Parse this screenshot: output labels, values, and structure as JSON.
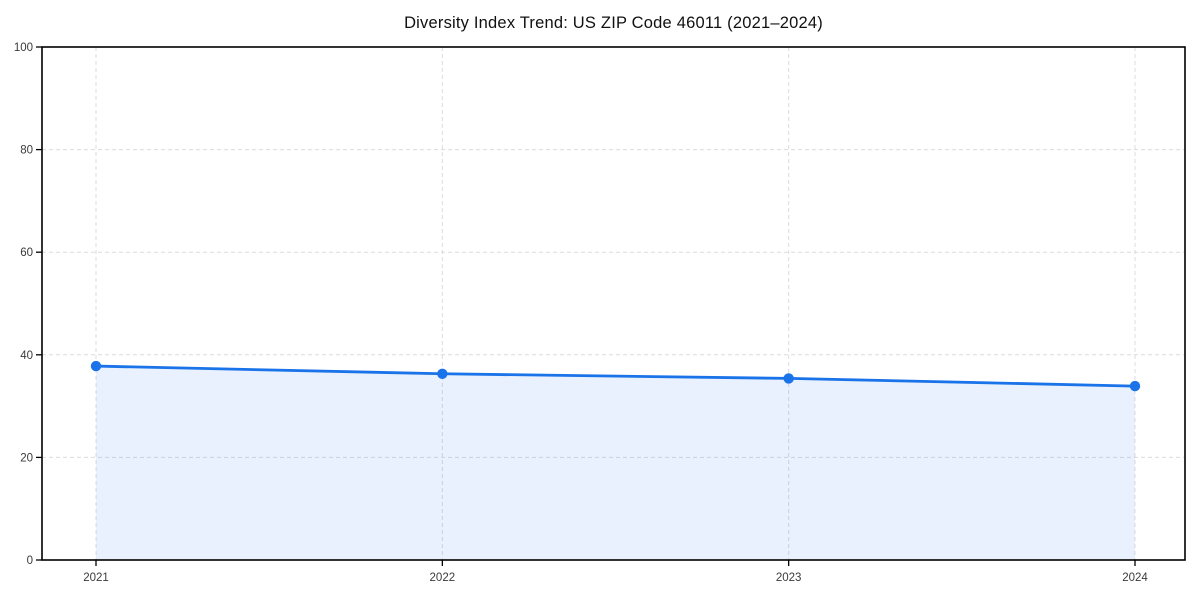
{
  "title": "Diversity Index Trend: US ZIP Code 46011 (2021–2024)",
  "colors": {
    "line": "#1a73e8",
    "marker": "#1a73e8",
    "area_fill": "rgba(26,115,232,0.10)",
    "grid": "#dcdcdc",
    "spine": "#000000",
    "tick_text": "#3a3a3a",
    "title_text": "#111111",
    "background": "#ffffff"
  },
  "chart_data": {
    "type": "line",
    "title": "Diversity Index Trend: US ZIP Code 46011 (2021–2024)",
    "x": [
      2021,
      2022,
      2023,
      2024
    ],
    "categories": [
      "2021",
      "2022",
      "2023",
      "2024"
    ],
    "series": [
      {
        "name": "Diversity Index",
        "values": [
          37.8,
          36.3,
          35.4,
          33.9
        ]
      }
    ],
    "xlabel": "",
    "ylabel": "",
    "ylim": [
      0,
      100
    ],
    "yticks": [
      0,
      20,
      40,
      60,
      80,
      100
    ],
    "ytick_labels": [
      "0",
      "20",
      "40",
      "60",
      "80",
      "100"
    ],
    "grid": "dashed",
    "legend": "none",
    "area_fill_under_line": true,
    "markers": "circle"
  }
}
